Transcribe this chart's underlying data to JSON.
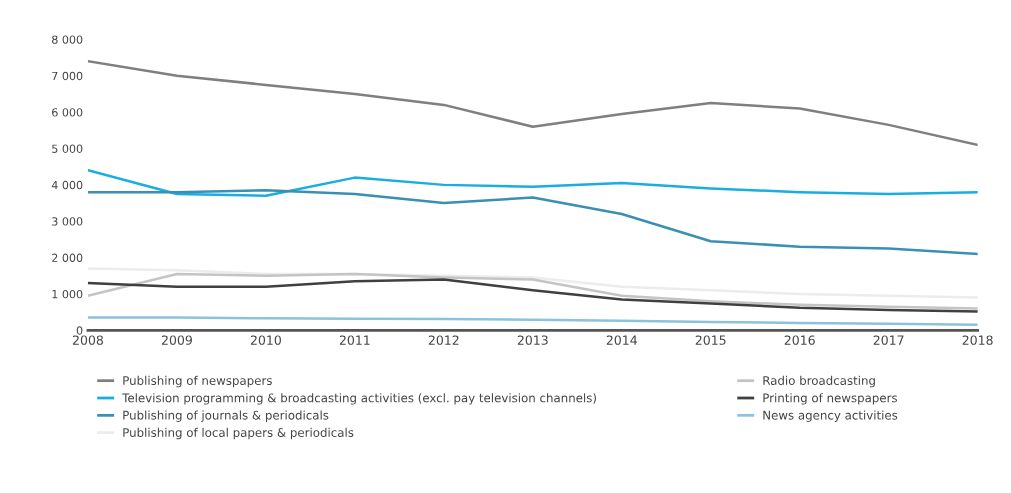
{
  "chart_data": {
    "type": "line",
    "x": [
      2008,
      2009,
      2010,
      2011,
      2012,
      2013,
      2014,
      2015,
      2016,
      2017,
      2018
    ],
    "xlim": [
      2008,
      2018
    ],
    "xticks": [
      2008,
      2009,
      2010,
      2011,
      2012,
      2013,
      2014,
      2015,
      2016,
      2017,
      2018
    ],
    "ylim": [
      0,
      8000
    ],
    "yticks": [
      {
        "value": 0,
        "label": "0"
      },
      {
        "value": 1000,
        "label": "1 000"
      },
      {
        "value": 2000,
        "label": "2 000"
      },
      {
        "value": 3000,
        "label": "3 000"
      },
      {
        "value": 4000,
        "label": "4 000"
      },
      {
        "value": 5000,
        "label": "5 000"
      },
      {
        "value": 6000,
        "label": "6 000"
      },
      {
        "value": 7000,
        "label": "7 000"
      },
      {
        "value": 8000,
        "label": "8 000"
      }
    ],
    "grid": false,
    "legend": "bottom",
    "marker": "none",
    "line_style": "solid",
    "series": [
      {
        "name": "Publishing of newspapers",
        "color": "#7f7f7f",
        "values": [
          7400,
          7000,
          6750,
          6500,
          6200,
          5600,
          5950,
          6250,
          6100,
          5650,
          5100
        ]
      },
      {
        "name": "Television programming & broadcasting activities (excl. pay television channels)",
        "color": "#18aee0",
        "values": [
          4400,
          3750,
          3700,
          4200,
          4000,
          3950,
          4050,
          3900,
          3800,
          3750,
          3800
        ]
      },
      {
        "name": "Publishing of journals & periodicals",
        "color": "#3a90b4",
        "values": [
          3800,
          3800,
          3850,
          3750,
          3500,
          3650,
          3200,
          2450,
          2300,
          2250,
          2100
        ]
      },
      {
        "name": "Publishing of local papers & periodicals",
        "color": "#ececec",
        "values": [
          1700,
          1650,
          1550,
          1550,
          1500,
          1450,
          1200,
          1100,
          1000,
          950,
          900
        ]
      },
      {
        "name": "Radio broadcasting",
        "color": "#c4c4c4",
        "values": [
          950,
          1550,
          1500,
          1550,
          1450,
          1400,
          950,
          800,
          700,
          650,
          600
        ]
      },
      {
        "name": "Printing of newspapers",
        "color": "#404040",
        "values": [
          1300,
          1200,
          1200,
          1350,
          1400,
          1100,
          850,
          740,
          620,
          560,
          520
        ]
      },
      {
        "name": "News agency activities",
        "color": "#8cc2de",
        "values": [
          350,
          350,
          330,
          320,
          310,
          290,
          260,
          230,
          200,
          180,
          150
        ]
      }
    ]
  }
}
